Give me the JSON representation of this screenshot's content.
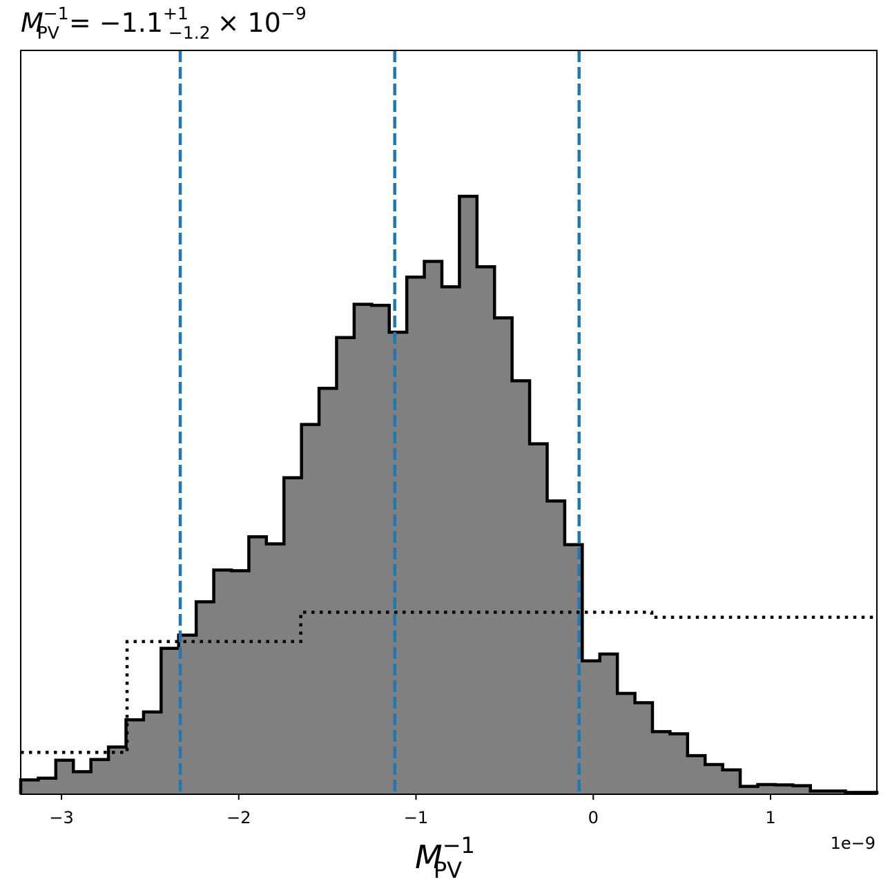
{
  "chart_data": {
    "type": "histogram",
    "title": {
      "symbol": "M",
      "symbol_sub": "PV",
      "symbol_sup": "−1",
      "median": "= −1.1",
      "upper_err": "+1",
      "lower_err": "−1.2",
      "times": "× 10",
      "exponent": "−9"
    },
    "xlabel": {
      "symbol": "M",
      "sub": "PV",
      "sup": "−1"
    },
    "x_offset_label": "1e−9",
    "x_scale_exponent": -9,
    "xlim": [
      -3.23,
      1.6
    ],
    "ylim": [
      0,
      208
    ],
    "xticks": [
      {
        "value": -3,
        "label": "−3"
      },
      {
        "value": -2,
        "label": "−2"
      },
      {
        "value": -1,
        "label": "−1"
      },
      {
        "value": 0,
        "label": "0"
      },
      {
        "value": 1,
        "label": "1"
      }
    ],
    "histogram": {
      "bin_edges": [
        -3.23,
        -3.131,
        -3.032,
        -2.933,
        -2.834,
        -2.735,
        -2.636,
        -2.537,
        -2.438,
        -2.339,
        -2.24,
        -2.141,
        -2.042,
        -1.943,
        -1.844,
        -1.745,
        -1.646,
        -1.547,
        -1.448,
        -1.349,
        -1.25,
        -1.151,
        -1.052,
        -0.953,
        -0.854,
        -0.755,
        -0.656,
        -0.557,
        -0.458,
        -0.359,
        -0.26,
        -0.161,
        -0.062,
        0.037,
        0.136,
        0.235,
        0.334,
        0.433,
        0.532,
        0.631,
        0.73,
        0.829,
        0.928,
        1.027,
        1.126,
        1.225,
        1.324,
        1.423,
        1.522,
        1.6
      ],
      "counts": [
        4,
        4.5,
        9.5,
        6.3,
        9.7,
        13.2,
        20.8,
        23,
        40.8,
        44.5,
        53.8,
        62.7,
        62.5,
        72,
        70,
        88.5,
        103.4,
        113.5,
        127.7,
        137,
        136.7,
        129.2,
        144.6,
        149,
        141.9,
        167.2,
        147.5,
        133.2,
        115.6,
        98,
        82,
        69.8,
        37.3,
        39.2,
        28.2,
        25.6,
        17.5,
        16.9,
        10.8,
        8.3,
        6.8,
        2.2,
        2.7,
        2.6,
        2.4,
        0.9,
        0.9,
        0.5,
        0.5
      ],
      "color": "#808080",
      "edge_color": "#000000"
    },
    "prior": {
      "style": "dotted",
      "color": "#000000",
      "bin_edges": [
        -3.23,
        -2.63,
        -1.65,
        0.33,
        1.6
      ],
      "values": [
        11.7,
        42.7,
        50.9,
        49.5
      ]
    },
    "quantile_lines": {
      "style": "dashed",
      "color": "#1f77b4",
      "x": [
        -2.33,
        -1.12,
        -0.08
      ]
    }
  }
}
